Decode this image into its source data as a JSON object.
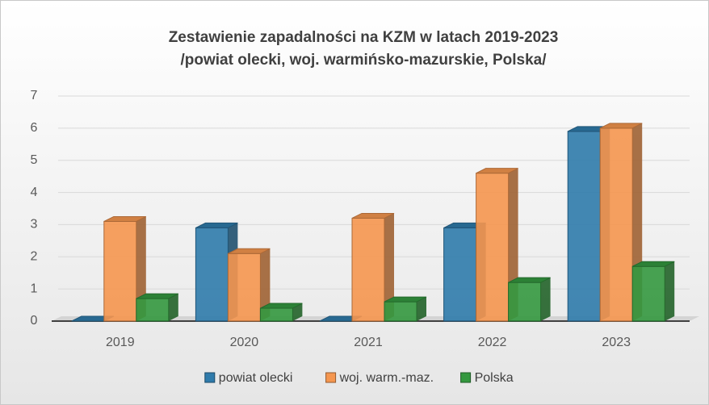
{
  "chart_data": {
    "type": "bar3d",
    "title": "Zestawienie zapadalności na KZM w latach 2019-2023",
    "subtitle": "/powiat olecki, woj. warmińsko-mazurskie, Polska/",
    "categories": [
      "2019",
      "2020",
      "2021",
      "2022",
      "2023"
    ],
    "series": [
      {
        "name": "powiat olecki",
        "color": "#2f7bab",
        "values": [
          0,
          2.9,
          0,
          2.9,
          5.9
        ]
      },
      {
        "name": "woj. warm.-maz.",
        "color": "#f5964f",
        "values": [
          3.1,
          2.1,
          3.2,
          4.6,
          6.0
        ]
      },
      {
        "name": "Polska",
        "color": "#34983f",
        "values": [
          0.7,
          0.4,
          0.6,
          1.2,
          1.7
        ]
      }
    ],
    "ylim": [
      0,
      7
    ],
    "yticks": [
      0,
      1,
      2,
      3,
      4,
      5,
      6,
      7
    ],
    "grid": true,
    "legend": "bottom"
  }
}
